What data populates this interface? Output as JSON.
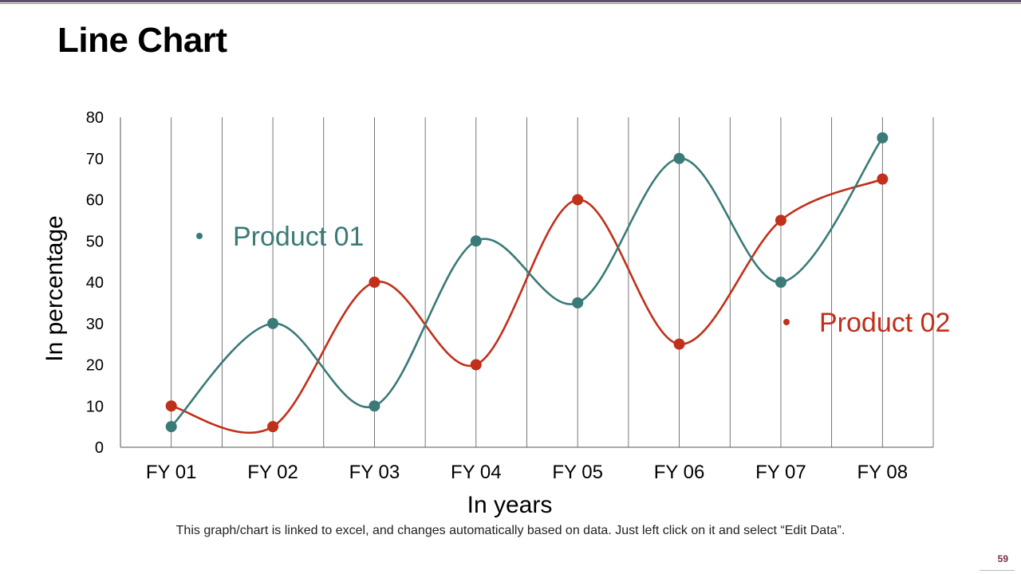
{
  "title": "Line Chart",
  "footnote": "This graph/chart is linked to excel, and changes automatically based on data. Just left click on it and select “Edit Data”.",
  "page_number": "59",
  "colors": {
    "product01": "#3a7a77",
    "product02": "#c0301a",
    "grid": "#555555"
  },
  "chart_data": {
    "type": "line",
    "title": "",
    "xlabel": "In years",
    "ylabel": "In percentage",
    "categories": [
      "FY 01",
      "FY 02",
      "FY 03",
      "FY 04",
      "FY 05",
      "FY 06",
      "FY 07",
      "FY 08"
    ],
    "ylim": [
      0,
      80
    ],
    "yticks": [
      0,
      10,
      20,
      30,
      40,
      50,
      60,
      70,
      80
    ],
    "grid": "vertical",
    "smooth": true,
    "series": [
      {
        "name": "Product 01",
        "values": [
          5,
          30,
          10,
          50,
          35,
          70,
          40,
          75
        ]
      },
      {
        "name": "Product 02",
        "values": [
          10,
          5,
          40,
          20,
          60,
          25,
          55,
          65
        ]
      }
    ]
  }
}
